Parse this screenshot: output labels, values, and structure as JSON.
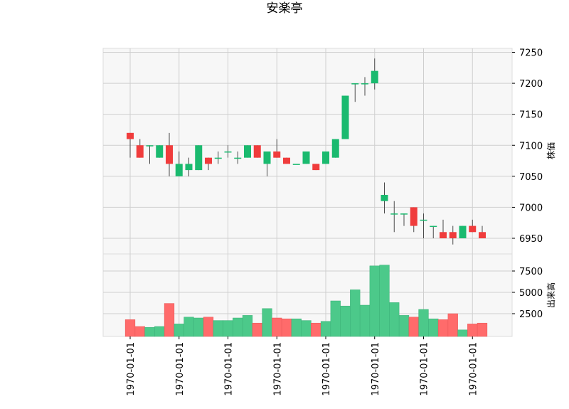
{
  "chart_data": {
    "type": "candlestick",
    "title": "安楽亭",
    "price_ylabel": "株価",
    "volume_ylabel": "出来高",
    "price_yticks": [
      6950,
      7000,
      7050,
      7100,
      7150,
      7200,
      7250
    ],
    "volume_yticks": [
      2500,
      5000,
      7500
    ],
    "volume_ytick_labels": [
      "2500",
      "5000",
      "7500"
    ],
    "xtick_labels": [
      "1970-01-01",
      "1970-01-01",
      "1970-01-01",
      "1970-01-01",
      "1970-01-01",
      "1970-01-01",
      "1970-01-01",
      "1970-01-01"
    ],
    "up_color": "#1aba6f",
    "down_color": "#f03c3c",
    "up_volume_color": "#4cc98a",
    "down_volume_color": "#ff6b6b",
    "candles": [
      {
        "open": 7120,
        "high": 7120,
        "low": 7080,
        "close": 7110,
        "volume": 1800
      },
      {
        "open": 7100,
        "high": 7110,
        "low": 7080,
        "close": 7080,
        "volume": 1000
      },
      {
        "open": 7100,
        "high": 7100,
        "low": 7070,
        "close": 7100,
        "volume": 900
      },
      {
        "open": 7080,
        "high": 7100,
        "low": 7080,
        "close": 7100,
        "volume": 1000
      },
      {
        "open": 7100,
        "high": 7120,
        "low": 7050,
        "close": 7070,
        "volume": 3700
      },
      {
        "open": 7050,
        "high": 7090,
        "low": 7050,
        "close": 7070,
        "volume": 1300
      },
      {
        "open": 7060,
        "high": 7080,
        "low": 7050,
        "close": 7070,
        "volume": 2100
      },
      {
        "open": 7060,
        "high": 7100,
        "low": 7060,
        "close": 7100,
        "volume": 2000
      },
      {
        "open": 7080,
        "high": 7080,
        "low": 7060,
        "close": 7070,
        "volume": 2100
      },
      {
        "open": 7080,
        "high": 7090,
        "low": 7070,
        "close": 7080,
        "volume": 1700
      },
      {
        "open": 7090,
        "high": 7100,
        "low": 7080,
        "close": 7090,
        "volume": 1700
      },
      {
        "open": 7080,
        "high": 7090,
        "low": 7070,
        "close": 7080,
        "volume": 2000
      },
      {
        "open": 7080,
        "high": 7100,
        "low": 7080,
        "close": 7100,
        "volume": 2300
      },
      {
        "open": 7100,
        "high": 7100,
        "low": 7080,
        "close": 7080,
        "volume": 1400
      },
      {
        "open": 7070,
        "high": 7090,
        "low": 7050,
        "close": 7090,
        "volume": 3100
      },
      {
        "open": 7090,
        "high": 7110,
        "low": 7080,
        "close": 7080,
        "volume": 2000
      },
      {
        "open": 7080,
        "high": 7080,
        "low": 7070,
        "close": 7070,
        "volume": 1900
      },
      {
        "open": 7070,
        "high": 7070,
        "low": 7070,
        "close": 7070,
        "volume": 1900
      },
      {
        "open": 7070,
        "high": 7090,
        "low": 7070,
        "close": 7090,
        "volume": 1700
      },
      {
        "open": 7070,
        "high": 7070,
        "low": 7060,
        "close": 7060,
        "volume": 1400
      },
      {
        "open": 7070,
        "high": 7090,
        "low": 7070,
        "close": 7090,
        "volume": 1600
      },
      {
        "open": 7080,
        "high": 7110,
        "low": 7080,
        "close": 7110,
        "volume": 4000
      },
      {
        "open": 7110,
        "high": 7180,
        "low": 7110,
        "close": 7180,
        "volume": 3400
      },
      {
        "open": 7200,
        "high": 7200,
        "low": 7170,
        "close": 7200,
        "volume": 5300
      },
      {
        "open": 7200,
        "high": 7210,
        "low": 7180,
        "close": 7200,
        "volume": 3500
      },
      {
        "open": 7200,
        "high": 7240,
        "low": 7190,
        "close": 7220,
        "volume": 8100
      },
      {
        "open": 7010,
        "high": 7040,
        "low": 6990,
        "close": 7020,
        "volume": 8200
      },
      {
        "open": 6990,
        "high": 7010,
        "low": 6960,
        "close": 6990,
        "volume": 3800
      },
      {
        "open": 6990,
        "high": 6990,
        "low": 6970,
        "close": 6990,
        "volume": 2300
      },
      {
        "open": 7000,
        "high": 7000,
        "low": 6960,
        "close": 6970,
        "volume": 2100
      },
      {
        "open": 6980,
        "high": 6990,
        "low": 6950,
        "close": 6980,
        "volume": 3000
      },
      {
        "open": 6970,
        "high": 6970,
        "low": 6950,
        "close": 6970,
        "volume": 1900
      },
      {
        "open": 6960,
        "high": 6980,
        "low": 6950,
        "close": 6950,
        "volume": 1800
      },
      {
        "open": 6960,
        "high": 6970,
        "low": 6940,
        "close": 6950,
        "volume": 2500
      },
      {
        "open": 6950,
        "high": 6970,
        "low": 6950,
        "close": 6970,
        "volume": 600
      },
      {
        "open": 6970,
        "high": 6980,
        "low": 6960,
        "close": 6960,
        "volume": 1300
      },
      {
        "open": 6960,
        "high": 6970,
        "low": 6950,
        "close": 6950,
        "volume": 1400
      }
    ]
  }
}
